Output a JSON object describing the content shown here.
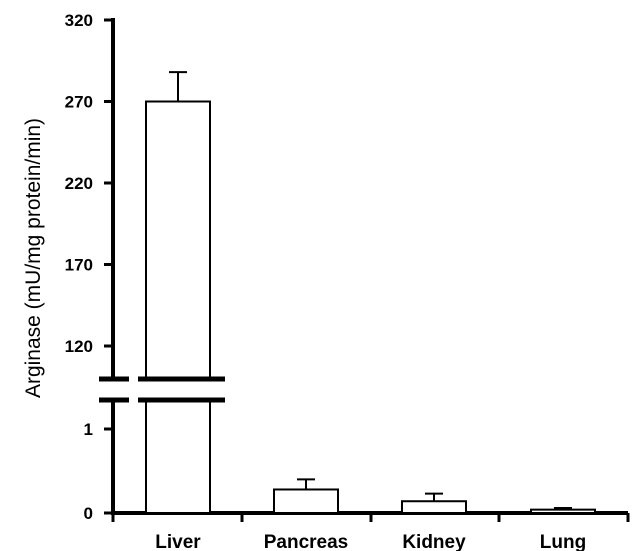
{
  "chart_data": {
    "type": "bar",
    "title": "",
    "xlabel": "",
    "ylabel": "Arginase (mU/mg protein/min)",
    "categories": [
      "Liver",
      "Pancreas",
      "Kidney",
      "Lung"
    ],
    "values": [
      270,
      0.28,
      0.14,
      0.04
    ],
    "errors": [
      18,
      0.12,
      0.09,
      0.02
    ],
    "y_axis": {
      "broken": true,
      "lower_ticks": [
        0,
        1
      ],
      "lower_range": [
        0,
        1.4
      ],
      "upper_ticks": [
        120,
        170,
        220,
        270,
        320
      ],
      "upper_range": [
        110,
        320
      ]
    },
    "bar_fill": "#ffffff",
    "bar_stroke": "#000000",
    "grid": false,
    "legend": "none"
  }
}
